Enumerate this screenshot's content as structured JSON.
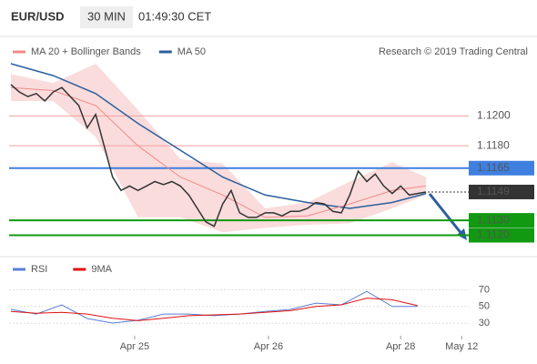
{
  "header": {
    "symbol": "EUR/USD",
    "timeframe": "30 MIN",
    "time": "01:49:30 CET"
  },
  "chart_data": [
    {
      "type": "line",
      "source": "Research © 2019 Trading Central",
      "xlim": [
        0,
        53.5
      ],
      "ylim": [
        1.1113,
        1.1235
      ],
      "series": [
        {
          "color": "#333333",
          "values": [
            1.1221,
            1.1216,
            1.1213,
            1.1215,
            1.121,
            1.1216,
            1.1219,
            1.1213,
            1.1207,
            1.1192,
            1.1201,
            1.118,
            1.1159,
            1.115,
            1.1153,
            1.115,
            1.1153,
            1.1156,
            1.1154,
            1.1156,
            1.1153,
            1.1147,
            1.1138,
            1.1129,
            1.1126,
            1.1141,
            1.115,
            1.1135,
            1.1132,
            1.1132,
            1.1135,
            1.1135,
            1.1133,
            1.1136,
            1.1136,
            1.1138,
            1.1142,
            1.1141,
            1.1136,
            1.1135,
            1.1147,
            1.1163,
            1.1156,
            1.1161,
            1.1153,
            1.1148,
            1.1153,
            1.1147,
            1.1148,
            1.1149
          ]
        },
        {
          "name": "MA 20 + Bollinger Bands",
          "color": "#f08a8a",
          "x": [
            0,
            5,
            10,
            15,
            20,
            25,
            30,
            35,
            40,
            45,
            49
          ],
          "values": [
            1.1219,
            1.1217,
            1.1207,
            1.118,
            1.1159,
            1.1147,
            1.1132,
            1.1133,
            1.1141,
            1.115,
            1.1153
          ],
          "upper": [
            1.1228,
            1.1222,
            1.1235,
            1.1204,
            1.1171,
            1.1168,
            1.1138,
            1.1142,
            1.1156,
            1.1169,
            1.1159
          ],
          "lower": [
            1.121,
            1.121,
            1.1186,
            1.1132,
            1.1132,
            1.1122,
            1.1125,
            1.1127,
            1.1128,
            1.1138,
            1.1147
          ]
        },
        {
          "name": "MA 50",
          "color": "#2c5f9e",
          "x": [
            0,
            5,
            10,
            15,
            20,
            25,
            30,
            35,
            40,
            45,
            49
          ],
          "values": [
            1.1235,
            1.1227,
            1.1215,
            1.1195,
            1.1177,
            1.1159,
            1.1147,
            1.1142,
            1.1138,
            1.1142,
            1.1148
          ]
        }
      ],
      "levels": [
        {
          "value": 1.12,
          "label": "1.1200",
          "color": "#f4a0a0"
        },
        {
          "value": 1.118,
          "label": "1.1180",
          "color": "#f4a0a0"
        },
        {
          "value": 1.1165,
          "label": "1.1165",
          "color": "#3f7fe0"
        },
        {
          "value": 1.1149,
          "label": "1.1149",
          "color": "#333333"
        },
        {
          "value": 1.113,
          "label": "1.1130",
          "color": "#119911"
        },
        {
          "value": 1.112,
          "label": "1.1120",
          "color": "#119911"
        }
      ]
    },
    {
      "type": "line",
      "xlim": [
        0,
        53.5
      ],
      "ylim": [
        15,
        90
      ],
      "yticks": [
        70,
        50,
        30
      ],
      "xticks": [
        {
          "value": 14.6,
          "label": "Apr 25"
        },
        {
          "value": 30.4,
          "label": "Apr 26"
        },
        {
          "value": 46,
          "label": "Apr 28"
        },
        {
          "value": 53.2,
          "label": "May 12"
        }
      ],
      "series": [
        {
          "name": "RSI",
          "color": "#5b7fd6",
          "x": [
            0,
            3,
            6,
            9,
            12,
            15,
            18,
            21,
            24,
            27,
            30,
            33,
            36,
            39,
            42,
            45,
            48
          ],
          "values": [
            46.5,
            41,
            52,
            35.7,
            30.2,
            33.5,
            41,
            41,
            39,
            41,
            44,
            46.5,
            54,
            52,
            68,
            50,
            50
          ]
        },
        {
          "name": "9MA",
          "color": "#e01010",
          "x": [
            0,
            3,
            6,
            9,
            12,
            15,
            18,
            21,
            24,
            27,
            30,
            33,
            36,
            39,
            42,
            45,
            48
          ],
          "values": [
            44,
            42,
            43,
            41,
            36,
            33,
            36,
            39,
            40,
            41,
            43,
            45,
            50,
            52,
            60,
            58,
            51
          ]
        }
      ]
    }
  ]
}
